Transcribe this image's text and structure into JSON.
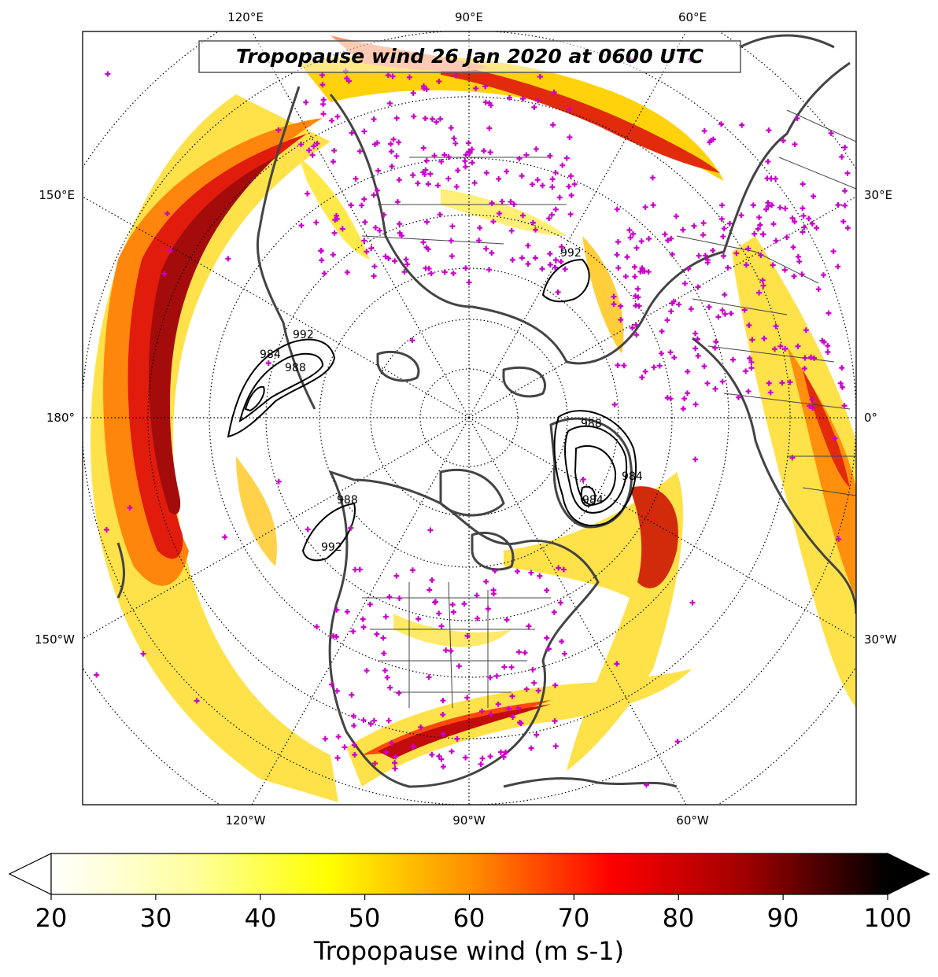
{
  "map": {
    "title": "Tropopause wind 26 Jan 2020 at 0600 UTC",
    "projection": "north-polar-stereographic",
    "lon_labels_top": [
      "120°E",
      "90°E",
      "60°E"
    ],
    "lon_labels_bottom": [
      "120°W",
      "90°W",
      "60°W"
    ],
    "lon_labels_left": [
      "150°E",
      "180°",
      "150°W"
    ],
    "lon_labels_right": [
      "30°E",
      "0°",
      "30°W"
    ],
    "contour_labels": [
      "992",
      "984",
      "988",
      "992",
      "988",
      "984",
      "992",
      "988",
      "984"
    ],
    "station_marker_color": "#cc00cc",
    "coastline_color": "#444444"
  },
  "colorbar": {
    "label": "Tropopause wind (m s-1)",
    "ticks": [
      "20",
      "30",
      "40",
      "50",
      "60",
      "70",
      "80",
      "90",
      "100"
    ],
    "range": [
      20,
      100
    ],
    "extend": "both",
    "colormap": "hot_r",
    "stops": [
      "#ffffff",
      "#ffff00",
      "#ff8000",
      "#ff0000",
      "#a00000",
      "#000000"
    ]
  }
}
